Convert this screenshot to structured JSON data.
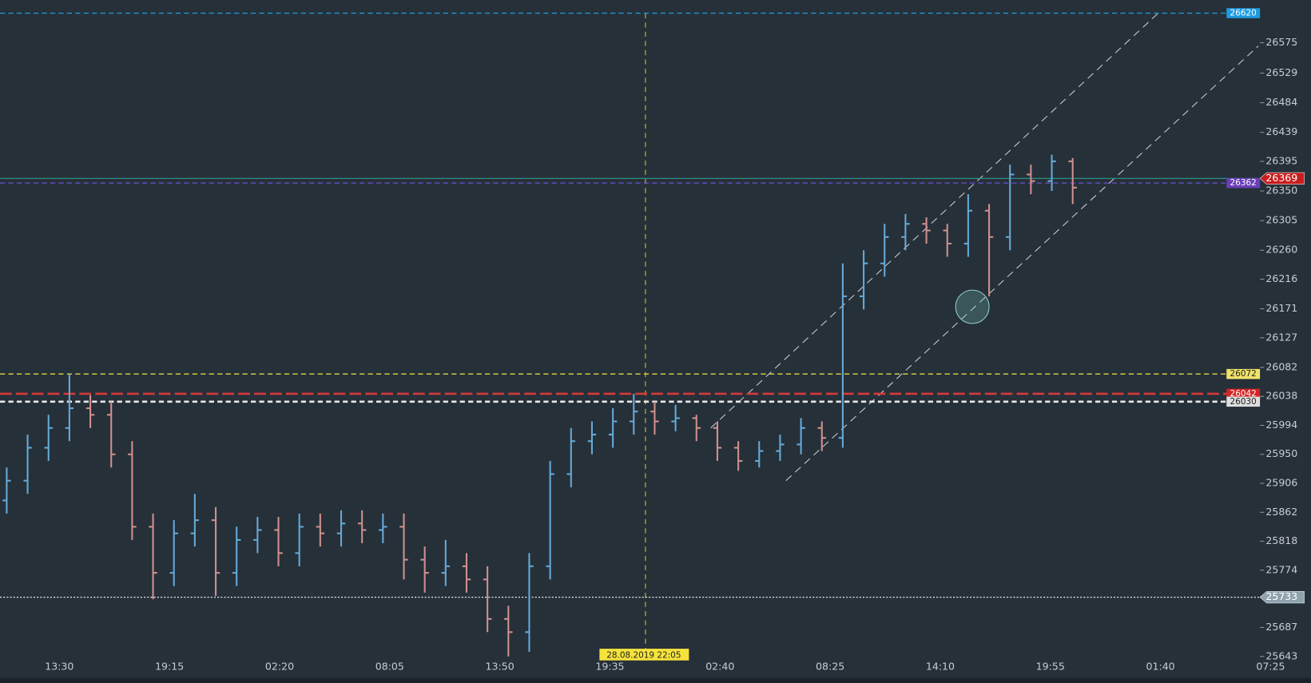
{
  "chart_data": {
    "type": "ohlc",
    "background": "#263039",
    "up_color": "#64a9d6",
    "down_color": "#cf8f8d",
    "ylim": [
      25637,
      26640
    ],
    "yticks": [
      26575,
      26529,
      26484,
      26439,
      26395,
      26350,
      26305,
      26260,
      26216,
      26171,
      26127,
      26082,
      26038,
      25994,
      25950,
      25906,
      25862,
      25818,
      25774,
      25687,
      25643
    ],
    "xtick_labels": [
      "13:30",
      "19:15",
      "02:20",
      "08:05",
      "13:50",
      "19:35",
      "02:40",
      "08:25",
      "14:10",
      "19:55",
      "01:40",
      "07:25"
    ],
    "crosshair_label": "28.08.2019 22:05",
    "open": [
      25880,
      25910,
      25960,
      25990,
      26020,
      26010,
      25950,
      25840,
      25770,
      25830,
      25850,
      25770,
      25820,
      25835,
      25800,
      25840,
      25830,
      25845,
      25835,
      25840,
      25790,
      25770,
      25780,
      25760,
      25700,
      25680,
      25780,
      25920,
      25970,
      25980,
      26000,
      26015,
      26000,
      26005,
      25990,
      25960,
      25940,
      25955,
      25965,
      25990,
      25975,
      26190,
      26240,
      26280,
      26300,
      26290,
      26270,
      26320,
      26280,
      26375,
      26365,
      26395
    ],
    "high": [
      25930,
      25980,
      26010,
      26072,
      26040,
      26030,
      25970,
      25860,
      25850,
      25890,
      25870,
      25840,
      25855,
      25855,
      25860,
      25860,
      25865,
      25865,
      25860,
      25860,
      25810,
      25820,
      25800,
      25780,
      25720,
      25800,
      25940,
      25990,
      26000,
      26020,
      26042,
      26030,
      26025,
      26010,
      26000,
      25970,
      25970,
      25980,
      26005,
      26000,
      26240,
      26260,
      26300,
      26315,
      26310,
      26300,
      26345,
      26330,
      26390,
      26390,
      26405,
      26400
    ],
    "low": [
      25860,
      25890,
      25940,
      25970,
      25990,
      25930,
      25820,
      25730,
      25750,
      25810,
      25735,
      25750,
      25800,
      25780,
      25780,
      25810,
      25810,
      25815,
      25815,
      25760,
      25740,
      25750,
      25740,
      25680,
      25643,
      25650,
      25760,
      25900,
      25950,
      25960,
      25980,
      25980,
      25985,
      25970,
      25940,
      25925,
      25930,
      25940,
      25950,
      25955,
      25960,
      26170,
      26220,
      26260,
      26270,
      26250,
      26250,
      26190,
      26260,
      26345,
      26350,
      26330
    ],
    "close": [
      25910,
      25960,
      25990,
      26020,
      26010,
      25950,
      25840,
      25770,
      25830,
      25850,
      25770,
      25820,
      25835,
      25800,
      25840,
      25830,
      25845,
      25835,
      25840,
      25790,
      25770,
      25780,
      25760,
      25700,
      25680,
      25780,
      25920,
      25970,
      25980,
      26000,
      26015,
      26000,
      26005,
      25990,
      25960,
      25940,
      25955,
      25965,
      25990,
      25975,
      26190,
      26240,
      26280,
      26300,
      26290,
      26270,
      26320,
      26280,
      26375,
      26365,
      26395,
      26355
    ],
    "levels": [
      {
        "value": 26620,
        "color": "#1e9be0",
        "style": "dashed",
        "label_bg": "#1e9be0",
        "label_place": "plot"
      },
      {
        "value": 26369,
        "color": "#2e8f80",
        "style": "solid",
        "label_bg": "#c81e1e",
        "label_place": "axis"
      },
      {
        "value": 26362,
        "color": "#6a4fd0",
        "style": "dashed",
        "label_bg": "#6a3fb8",
        "label_place": "plot"
      },
      {
        "value": 26072,
        "color": "#e3d445",
        "style": "dashed",
        "label_bg": "#f0e36a",
        "label_place": "plot"
      },
      {
        "value": 26042,
        "color": "#d83a3a",
        "style": "longdash",
        "label_bg": "#d42424",
        "label_place": "plot"
      },
      {
        "value": 26030,
        "color": "#e8e8e8",
        "style": "dashed",
        "label_bg": "#dedede",
        "label_place": "plot"
      },
      {
        "value": 25733,
        "color": "#e8e8e8",
        "style": "dotted",
        "label_bg": "#8fa3ad",
        "label_place": "axis"
      }
    ]
  }
}
